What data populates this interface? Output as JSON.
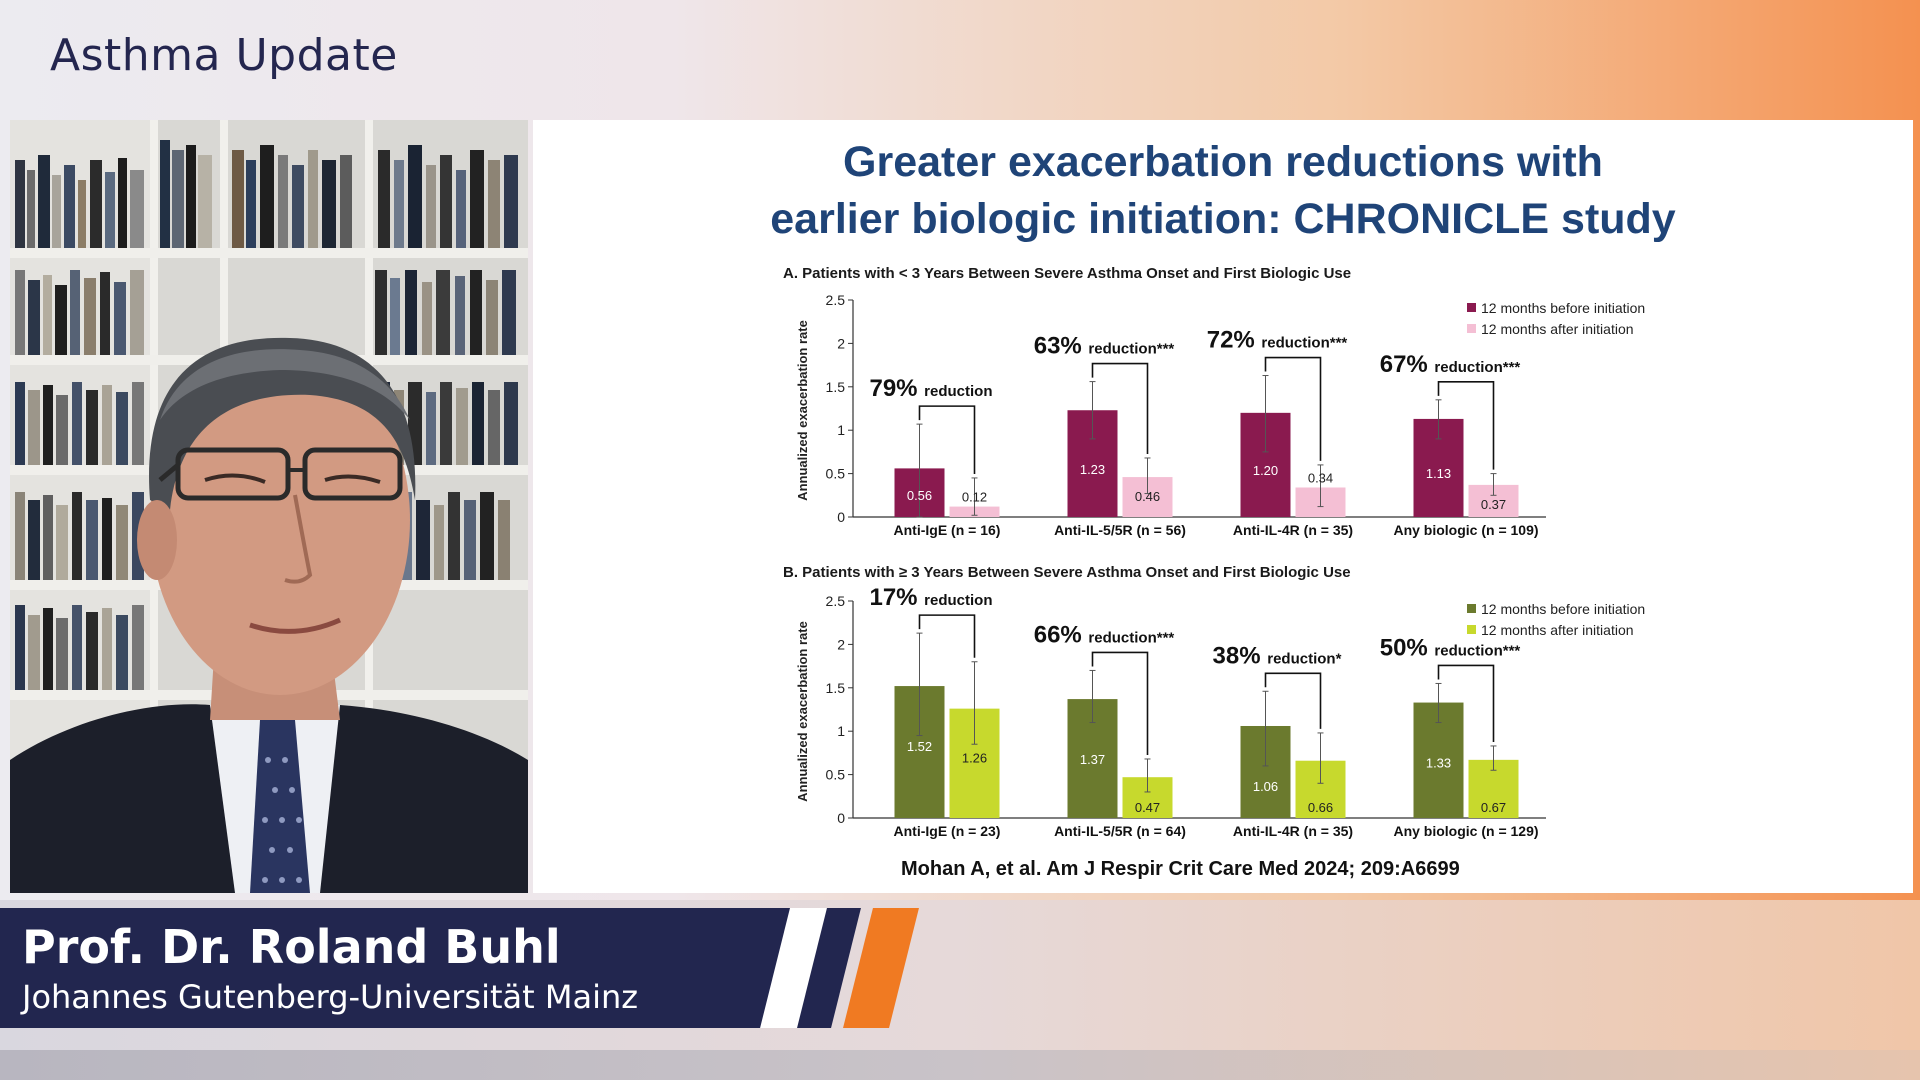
{
  "header": {
    "show_title": "Asthma Update"
  },
  "speaker": {
    "name": "Prof. Dr. Roland Buhl",
    "affiliation": "Johannes Gutenberg-Universität Mainz"
  },
  "slide": {
    "title_line1": "Greater exacerbation reductions with",
    "title_line2": "earlier biologic initiation: CHRONICLE study",
    "citation": "Mohan A, et al. Am J Respir Crit Care Med 2024; 209:A6699"
  },
  "colors": {
    "brand_navy": "#22264f",
    "brand_orange": "#f07a22",
    "title_blue": "#1f4478",
    "panelA_before": "#8a1a4f",
    "panelA_after": "#f4bfd4",
    "panelB_before": "#6b7a2e",
    "panelB_after": "#c7d92d"
  },
  "chart_data": [
    {
      "type": "bar",
      "panel": "A",
      "title": "A. Patients with < 3 Years Between Severe Asthma Onset and First Biologic Use",
      "ylabel": "Annualized exacerbation rate",
      "ylim": [
        0,
        2.5
      ],
      "yticks": [
        "0",
        "0.5",
        "1",
        "1.5",
        "2",
        "2.5"
      ],
      "categories": [
        "Anti-IgE (n = 16)",
        "Anti-IL-5/5R (n = 56)",
        "Anti-IL-4R (n = 35)",
        "Any biologic (n = 109)"
      ],
      "series": [
        {
          "name": "12 months before initiation",
          "values": [
            0.56,
            1.23,
            1.2,
            1.13
          ],
          "labels": [
            "0.56",
            "1.23",
            "1.20",
            "1.13"
          ],
          "err_low": [
            0,
            0.9,
            0.75,
            0.9
          ],
          "err_high": [
            1.07,
            1.56,
            1.63,
            1.35
          ]
        },
        {
          "name": "12 months after initiation",
          "values": [
            0.12,
            0.46,
            0.34,
            0.37
          ],
          "labels": [
            "0.12",
            "0.46",
            "0.34",
            "0.37"
          ],
          "err_low": [
            0.02,
            0.27,
            0.12,
            0.25
          ],
          "err_high": [
            0.45,
            0.68,
            0.6,
            0.5
          ]
        }
      ],
      "annotations": [
        {
          "pct": "79%",
          "text": "reduction"
        },
        {
          "pct": "63%",
          "text": "reduction***"
        },
        {
          "pct": "72%",
          "text": "reduction***"
        },
        {
          "pct": "67%",
          "text": "reduction***"
        }
      ],
      "legend": "top-right"
    },
    {
      "type": "bar",
      "panel": "B",
      "title": "B. Patients with ≥ 3 Years Between Severe Asthma Onset and First Biologic Use",
      "ylabel": "Annualized exacerbation rate",
      "ylim": [
        0,
        2.5
      ],
      "yticks": [
        "0",
        "0.5",
        "1",
        "1.5",
        "2",
        "2.5"
      ],
      "categories": [
        "Anti-IgE (n = 23)",
        "Anti-IL-5/5R (n = 64)",
        "Anti-IL-4R (n = 35)",
        "Any biologic (n = 129)"
      ],
      "series": [
        {
          "name": "12 months before initiation",
          "values": [
            1.52,
            1.37,
            1.06,
            1.33
          ],
          "labels": [
            "1.52",
            "1.37",
            "1.06",
            "1.33"
          ],
          "err_low": [
            0.95,
            1.1,
            0.6,
            1.1
          ],
          "err_high": [
            2.13,
            1.7,
            1.46,
            1.55
          ]
        },
        {
          "name": "12 months after initiation",
          "values": [
            1.26,
            0.47,
            0.66,
            0.67
          ],
          "labels": [
            "1.26",
            "0.47",
            "0.66",
            "0.67"
          ],
          "err_low": [
            0.85,
            0.3,
            0.4,
            0.55
          ],
          "err_high": [
            1.8,
            0.68,
            0.98,
            0.83
          ]
        }
      ],
      "annotations": [
        {
          "pct": "17%",
          "text": "reduction"
        },
        {
          "pct": "66%",
          "text": "reduction***"
        },
        {
          "pct": "38%",
          "text": "reduction*"
        },
        {
          "pct": "50%",
          "text": "reduction***"
        }
      ],
      "legend": "top-right"
    }
  ]
}
